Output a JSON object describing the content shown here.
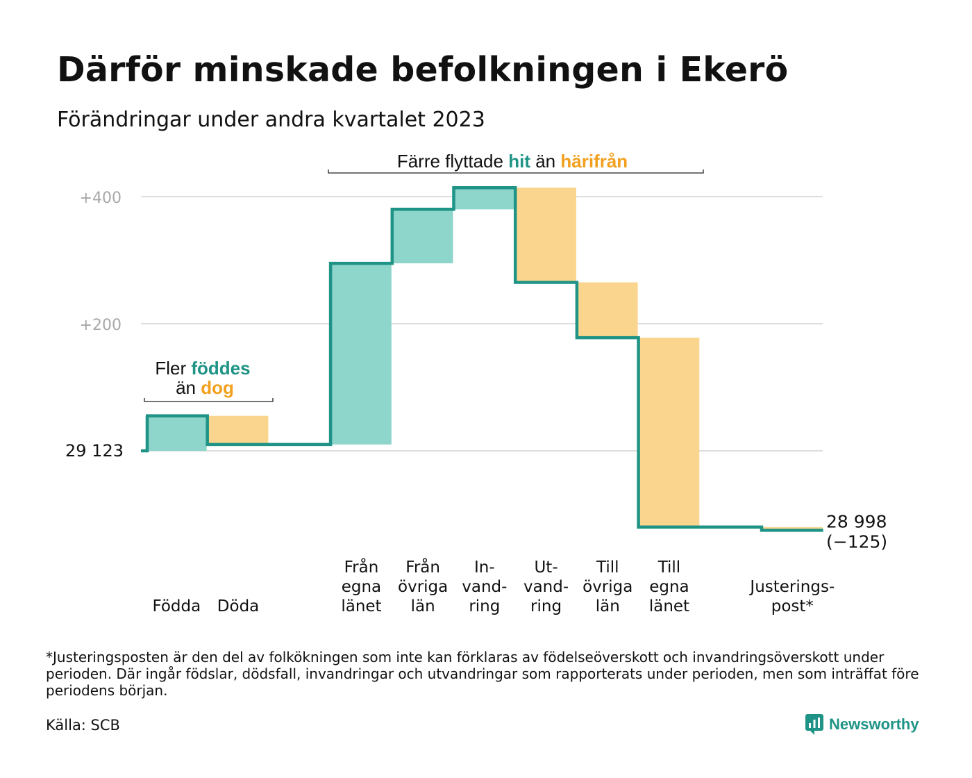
{
  "title": "Därför minskade befolkningen i Ekerö",
  "subtitle": "Förändringar under andra kvartalet 2023",
  "annotations": {
    "natural": {
      "line1_a": "Fler ",
      "line1_b": "föddes",
      "line2_a": "än ",
      "line2_b": "dog"
    },
    "migration": {
      "a": "Färre flyttade ",
      "b": "hit",
      "c": " än ",
      "d": "härifrån"
    }
  },
  "footnote": "*Justeringsposten är den del av folkökningen som inte kan förklaras av födelseöverskott och invandringsöverskott under perioden. Där ingår födslar, dödsfall, invandringar och utvandringar som rapporterats under perioden, men som inträffat före periodens början.",
  "source": "Källa: SCB",
  "brand": {
    "name": "Newsworthy",
    "icon": "newsworthy-logo-icon"
  },
  "colors": {
    "increase_fill": "#8ed5cb",
    "decrease_fill": "#fad58d",
    "line": "#1f9486",
    "teal_text": "#1f9486",
    "orange_text": "#f2a01e",
    "grid": "#dddddd",
    "tick_text": "#a8a8a8"
  },
  "chart_data": {
    "type": "waterfall",
    "start_label": "29 123",
    "start_value": 29123,
    "end_label": "28 998",
    "end_change_label": "(−125)",
    "end_value": 28998,
    "y_ticks": [
      {
        "label": "+200",
        "value": 200
      },
      {
        "label": "+400",
        "value": 400
      }
    ],
    "ylim": [
      -130,
      420
    ],
    "steps": [
      {
        "label": [
          "Födda"
        ],
        "value": 55,
        "kind": "increase"
      },
      {
        "label": [
          "Döda"
        ],
        "value": -45,
        "kind": "decrease"
      },
      {
        "label": [],
        "value": 0,
        "kind": "gap"
      },
      {
        "label": [
          "Från",
          "egna",
          "länet"
        ],
        "value": 285,
        "kind": "increase"
      },
      {
        "label": [
          "Från",
          "övriga",
          "län"
        ],
        "value": 85,
        "kind": "increase"
      },
      {
        "label": [
          "In-",
          "vand-",
          "ring"
        ],
        "value": 34,
        "kind": "increase"
      },
      {
        "label": [
          "Ut-",
          "vand-",
          "ring"
        ],
        "value": -149,
        "kind": "decrease"
      },
      {
        "label": [
          "Till",
          "övriga",
          "län"
        ],
        "value": -87,
        "kind": "decrease"
      },
      {
        "label": [
          "Till",
          "egna",
          "länet"
        ],
        "value": -298,
        "kind": "decrease"
      },
      {
        "label": [],
        "value": 0,
        "kind": "gap"
      },
      {
        "label": [
          "Justerings-",
          "post*"
        ],
        "value": -5,
        "kind": "decrease"
      }
    ],
    "grid": true
  }
}
